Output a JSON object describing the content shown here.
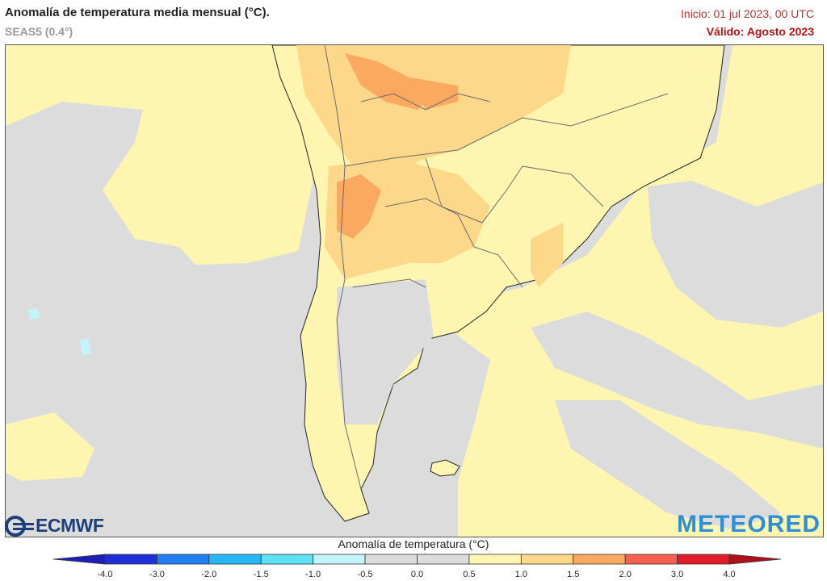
{
  "header": {
    "title": "Anomalía de temperatura media mensual (°C).",
    "subtitle": "SEAS5 (0.4°)",
    "init": "Inicio: 01 jul 2023, 00 UTC",
    "valid": "Válido: Agosto 2023"
  },
  "logos": {
    "left": "ECMWF",
    "right": "METEORED"
  },
  "legend": {
    "title": "Anomalía de temperatura (°C)",
    "ticks": [
      "-4.0",
      "-3.0",
      "-2.0",
      "-1.5",
      "-1.0",
      "-0.5",
      "0.0",
      "0.5",
      "1.0",
      "1.5",
      "2.0",
      "3.0",
      "4.0"
    ],
    "colors": [
      "#1f2fd8",
      "#1f7ef2",
      "#27b7f5",
      "#5ee0f5",
      "#c4f4fb",
      "#dcdcdc",
      "#dcdcdc",
      "#fef6b0",
      "#fed88a",
      "#fba860",
      "#f85f50",
      "#e01b2a"
    ],
    "min_color": "#1d1db8",
    "max_color": "#b0101c"
  },
  "map": {
    "colors": {
      "ocean_neutral": "#dcdcdc",
      "warm_0_5": "#fef6b0",
      "warm_1_0": "#fed88a",
      "warm_1_5": "#fba860",
      "cold_0_5": "#c4f4fb",
      "borders": "#6b6b6b",
      "coast": "#222222"
    }
  }
}
